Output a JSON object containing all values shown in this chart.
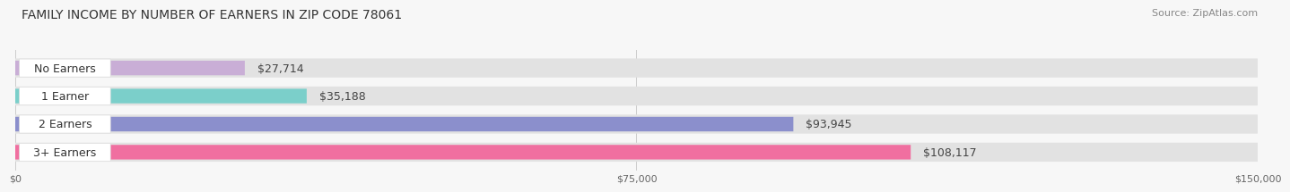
{
  "title": "FAMILY INCOME BY NUMBER OF EARNERS IN ZIP CODE 78061",
  "source": "Source: ZipAtlas.com",
  "categories": [
    "No Earners",
    "1 Earner",
    "2 Earners",
    "3+ Earners"
  ],
  "values": [
    27714,
    35188,
    93945,
    108117
  ],
  "value_labels": [
    "$27,714",
    "$35,188",
    "$93,945",
    "$108,117"
  ],
  "bar_colors": [
    "#c9aed6",
    "#7bcfca",
    "#8b8fcc",
    "#f06fa0"
  ],
  "bar_bg_color": "#e2e2e2",
  "x_max": 150000,
  "x_ticks": [
    0,
    75000,
    150000
  ],
  "x_tick_labels": [
    "$0",
    "$75,000",
    "$150,000"
  ],
  "background_color": "#f7f7f7",
  "title_fontsize": 10,
  "source_fontsize": 8,
  "label_fontsize": 9,
  "value_fontsize": 9
}
